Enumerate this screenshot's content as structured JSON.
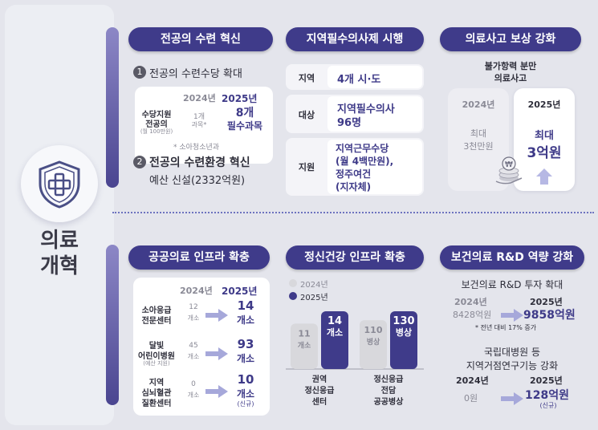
{
  "brand": {
    "title_line1": "의료",
    "title_line2": "개혁",
    "icon": "medical-cross-shield-icon"
  },
  "sections": {
    "resident": {
      "title": "전공의 수련 혁신",
      "item1_num": "1",
      "item1": "전공의 수련수당 확대",
      "year_prev": "2024년",
      "year_next": "2025년",
      "row_label1": "수당지원",
      "row_label2": "전공의",
      "row_label3": "(월 100만원)",
      "prev_val1": "1개",
      "prev_val2": "과목*",
      "next_val1": "8개",
      "next_val2": "필수과목",
      "footnote": "* 소아청소년과",
      "item2_num": "2",
      "item2": "전공의 수련환경 혁신",
      "item2_sub": "예산 신설(2332억원)"
    },
    "regional": {
      "title": "지역필수의사제 시행",
      "rows": [
        {
          "label": "지역",
          "value1": "4개 시·도",
          "value2": "",
          "value3": "",
          "value4": ""
        },
        {
          "label": "대상",
          "value1": "지역필수의사",
          "value2": "96명",
          "value3": "",
          "value4": ""
        },
        {
          "label": "지원",
          "value1": "지역근무수당",
          "value2": "(월 4백만원),",
          "value3": "정주여건",
          "value4": "(지자체)"
        }
      ]
    },
    "accident": {
      "title": "의료사고 보상 강화",
      "subtitle1": "불가항력 분만",
      "subtitle2": "의료사고",
      "year_prev": "2024년",
      "prev_val1": "최대",
      "prev_val2": "3천만원",
      "year_next": "2025년",
      "next_val1": "최대",
      "next_val2": "3억원",
      "icon": "coin-hand-icon"
    },
    "public": {
      "title": "공공의료 인프라 확충",
      "year_prev": "2024년",
      "year_next": "2025년",
      "rows": [
        {
          "l1": "소아응급",
          "l2": "전문센터",
          "l3": "",
          "p1": "12",
          "p2": "개소",
          "n1": "14",
          "n2": "개소",
          "n3": ""
        },
        {
          "l1": "달빛",
          "l2": "어린이병원",
          "l3": "(예산 지원)",
          "p1": "45",
          "p2": "개소",
          "n1": "93",
          "n2": "개소",
          "n3": ""
        },
        {
          "l1": "지역",
          "l2": "심뇌혈관",
          "l3": "질환센터",
          "p1": "0",
          "p2": "개소",
          "n1": "10",
          "n2": "개소",
          "n3": "(신규)"
        }
      ]
    },
    "mental": {
      "title": "정신건강 인프라 확충",
      "legend_prev": "2024년",
      "legend_next": "2025년",
      "colors": {
        "prev": "#d8d8dc",
        "next": "#3f3b8a"
      }
    },
    "rnd": {
      "title": "보건의료 R&D 역량 강화",
      "block1_title": "보건의료 R&D 투자 확대",
      "b1_year_prev": "2024년",
      "b1_prev": "8428억원",
      "b1_year_next": "2025년",
      "b1_next": "9858억원",
      "b1_note": "* 전년 대비 17% 증가",
      "block2_title1": "국립대병원 등",
      "block2_title2": "지역거점연구기능 강화",
      "b2_year_prev": "2024년",
      "b2_prev": "0원",
      "b2_year_next": "2025년",
      "b2_next": "128억원",
      "b2_next_note": "(신규)"
    }
  },
  "chart_data": {
    "type": "bar",
    "categories": [
      "권역 정신응급 센터",
      "정신응급 전담 공공병상"
    ],
    "category_labels": [
      [
        "권역",
        "정신응급",
        "센터"
      ],
      [
        "정신응급",
        "전담",
        "공공병상"
      ]
    ],
    "series": [
      {
        "name": "2024년",
        "values": [
          11,
          110
        ],
        "units": [
          "개소",
          "병상"
        ]
      },
      {
        "name": "2025년",
        "values": [
          14,
          130
        ],
        "units": [
          "개소",
          "병상"
        ]
      }
    ],
    "legend": "top-left"
  }
}
